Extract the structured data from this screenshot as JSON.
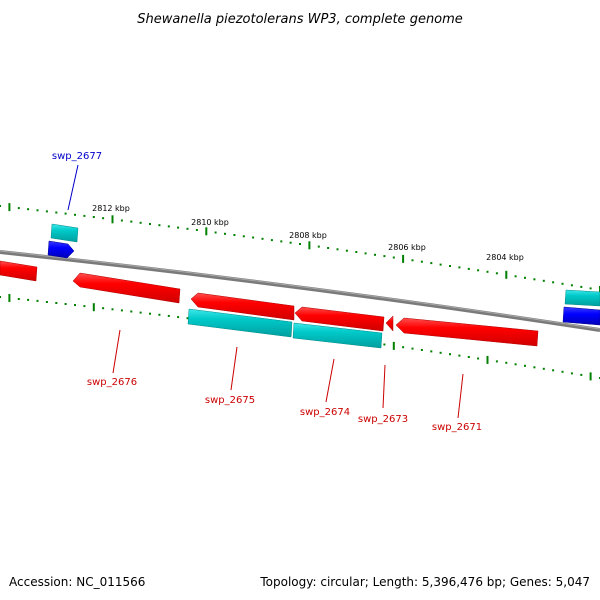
{
  "title": "Shewanella piezotolerans WP3, complete genome",
  "colors": {
    "forward_gene": "#ff0000",
    "reverse_gene": "#00c8c8",
    "blue_gene": "#0000ff",
    "backbone": "#808080",
    "tick": "#008000",
    "label_red": "#cc0000",
    "label_blue": "#0000cc"
  },
  "ticks": [
    "2812 kbp",
    "2810 kbp",
    "2808 kbp",
    "2806 kbp",
    "2804 kbp"
  ],
  "gene_labels": [
    "swp_2677",
    "swp_2676",
    "swp_2675",
    "swp_2674",
    "swp_2673",
    "swp_2671"
  ],
  "footer": {
    "accession": "Accession: NC_011566",
    "summary": "Topology: circular; Length: 5,396,476 bp; Genes: 5,047"
  }
}
